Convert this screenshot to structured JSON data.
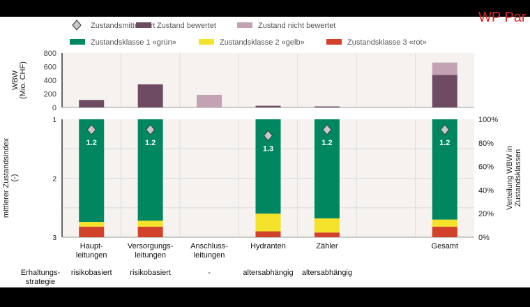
{
  "brand_text": "WP Par",
  "legend": [
    {
      "label": "Zustandsmittelwert",
      "color": "#c8c8c8",
      "shape": "diamond"
    },
    {
      "label": "Zustand bewertet",
      "color": "#6e4a63",
      "shape": "rect"
    },
    {
      "label": "Zustand nicht bewertet",
      "color": "#c3a3b3",
      "shape": "rect"
    },
    {
      "label": "Zustandsklasse 1 «grün»",
      "color": "#00875f",
      "shape": "rect"
    },
    {
      "label": "Zustandsklasse 2 «gelb»",
      "color": "#f5e22a",
      "shape": "rect"
    },
    {
      "label": "Zustandsklasse 3 «rot»",
      "color": "#d2412a",
      "shape": "rect"
    }
  ],
  "categories": [
    "Haupt-\nleitungen",
    "Versorgungs-\nleitungen",
    "Anschluss-\nleitungen",
    "Hydranten",
    "Zähler",
    "",
    "Gesamt"
  ],
  "strategy_label": "Erhaltungs-\nstrategie",
  "strategies": [
    "risikobasiert",
    "risikobasiert",
    "-",
    "altersabhängig",
    "altersabhängig",
    "",
    ""
  ],
  "chart_data": [
    {
      "type": "bar",
      "stacked": true,
      "ylabel": "WBW\n(Mio. CHF)",
      "ylim": [
        0,
        800
      ],
      "yticks": [
        0,
        200,
        400,
        600,
        800
      ],
      "grid": true,
      "legend_position": "top",
      "series": [
        {
          "name": "Zustand bewertet",
          "values": [
            110,
            340,
            0,
            25,
            15,
            0,
            480
          ]
        },
        {
          "name": "Zustand nicht bewertet",
          "values": [
            0,
            0,
            185,
            0,
            0,
            0,
            180
          ]
        }
      ]
    },
    {
      "type": "bar",
      "stacked": true,
      "ylabel_left": "mittlerer Zustandsindex\n(-)",
      "ylim_left": [
        3,
        1
      ],
      "yticks_left": [
        1,
        2,
        3
      ],
      "ylabel_right": "Verteilung WBW in\nZustandsklassen",
      "ylim_right": [
        0,
        100
      ],
      "yticks_right": [
        "0%",
        "20%",
        "40%",
        "60%",
        "80%",
        "100%"
      ],
      "grid": true,
      "series": [
        {
          "name": "Zustandsklasse 3 «rot»",
          "values": [
            9,
            9,
            null,
            5,
            4,
            null,
            9
          ]
        },
        {
          "name": "Zustandsklasse 2 «gelb»",
          "values": [
            4,
            5,
            null,
            15,
            12,
            null,
            6
          ]
        },
        {
          "name": "Zustandsklasse 1 «grün»",
          "values": [
            87,
            86,
            null,
            80,
            84,
            null,
            85
          ]
        }
      ],
      "mean_index": {
        "name": "Zustandsmittelwert",
        "values": [
          1.2,
          1.2,
          null,
          1.3,
          1.2,
          null,
          1.2
        ],
        "labels": [
          "1.2",
          "1.2",
          "",
          "1.3",
          "1.2",
          "",
          "1.2"
        ]
      }
    }
  ]
}
